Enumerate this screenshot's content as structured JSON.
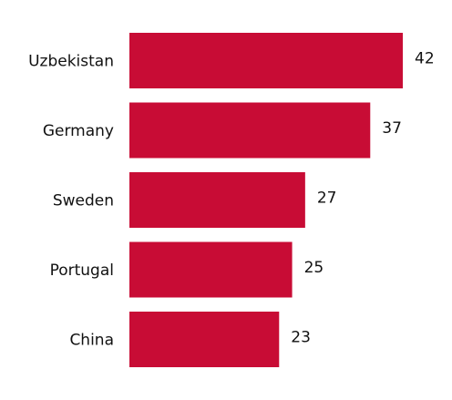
{
  "chart_data": {
    "type": "hbar",
    "categories": [
      "Uzbekistan",
      "Germany",
      "Sweden",
      "Portugal",
      "China"
    ],
    "values": [
      42,
      37,
      27,
      25,
      23
    ],
    "color": "#c80c35"
  }
}
